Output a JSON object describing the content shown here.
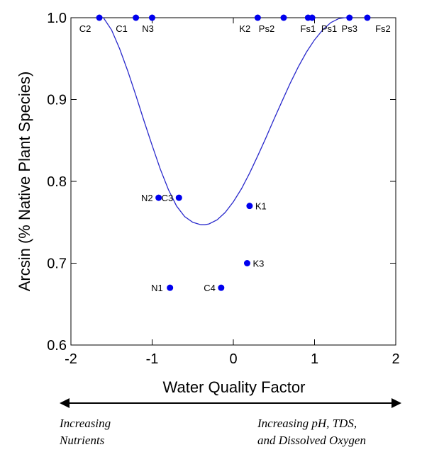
{
  "chart_data": {
    "type": "scatter",
    "title": "",
    "xlabel": "Water Quality Factor",
    "ylabel": "Arcsin (% Native Plant Species)",
    "xlim": [
      -2,
      2
    ],
    "ylim": [
      0.6,
      1.0
    ],
    "xticks": [
      "-2",
      "-1",
      "0",
      "1",
      "2"
    ],
    "yticks": [
      "0.6",
      "0.7",
      "0.8",
      "0.9",
      "1.0"
    ],
    "grid": false,
    "series": [
      {
        "points": [
          {
            "label": "C2",
            "x": -1.65,
            "y": 1.0
          },
          {
            "label": "C1",
            "x": -1.2,
            "y": 1.0
          },
          {
            "label": "N3",
            "x": -1.0,
            "y": 1.0
          },
          {
            "label": "K2",
            "x": 0.3,
            "y": 1.0
          },
          {
            "label": "Ps2",
            "x": 0.62,
            "y": 1.0
          },
          {
            "label": "Fs1",
            "x": 0.92,
            "y": 1.0
          },
          {
            "label": "Ps1",
            "x": 0.97,
            "y": 1.0
          },
          {
            "label": "Ps3",
            "x": 1.43,
            "y": 1.0
          },
          {
            "label": "Fs2",
            "x": 1.65,
            "y": 1.0
          },
          {
            "label": "N2",
            "x": -0.92,
            "y": 0.78
          },
          {
            "label": "C3",
            "x": -0.67,
            "y": 0.78
          },
          {
            "label": "K1",
            "x": 0.2,
            "y": 0.77
          },
          {
            "label": "K3",
            "x": 0.17,
            "y": 0.7
          },
          {
            "label": "N1",
            "x": -0.78,
            "y": 0.67
          },
          {
            "label": "C4",
            "x": -0.15,
            "y": 0.67
          }
        ]
      }
    ],
    "fit_curve": {
      "type": "line",
      "x": [
        -1.6,
        -1.5,
        -1.4,
        -1.3,
        -1.2,
        -1.1,
        -1.0,
        -0.9,
        -0.8,
        -0.7,
        -0.6,
        -0.5,
        -0.4,
        -0.35,
        -0.3,
        -0.2,
        -0.1,
        0.0,
        0.1,
        0.2,
        0.3,
        0.4,
        0.5,
        0.6,
        0.7,
        0.8,
        0.9,
        1.0,
        1.1,
        1.2,
        1.3,
        1.38,
        1.45
      ],
      "y": [
        1.0,
        0.985,
        0.962,
        0.935,
        0.905,
        0.874,
        0.844,
        0.815,
        0.79,
        0.77,
        0.757,
        0.75,
        0.747,
        0.747,
        0.748,
        0.753,
        0.762,
        0.775,
        0.791,
        0.81,
        0.831,
        0.853,
        0.876,
        0.898,
        0.92,
        0.94,
        0.958,
        0.973,
        0.985,
        0.994,
        0.999,
        1.0,
        1.0
      ]
    },
    "colors": {
      "points": "#0000ee",
      "curve": "#2a2acc",
      "axis": "#000000"
    }
  },
  "arrow": {
    "left_caption": [
      "Increasing",
      "Nutrients"
    ],
    "right_caption": [
      "Increasing pH, TDS,",
      "and Dissolved Oxygen"
    ]
  }
}
